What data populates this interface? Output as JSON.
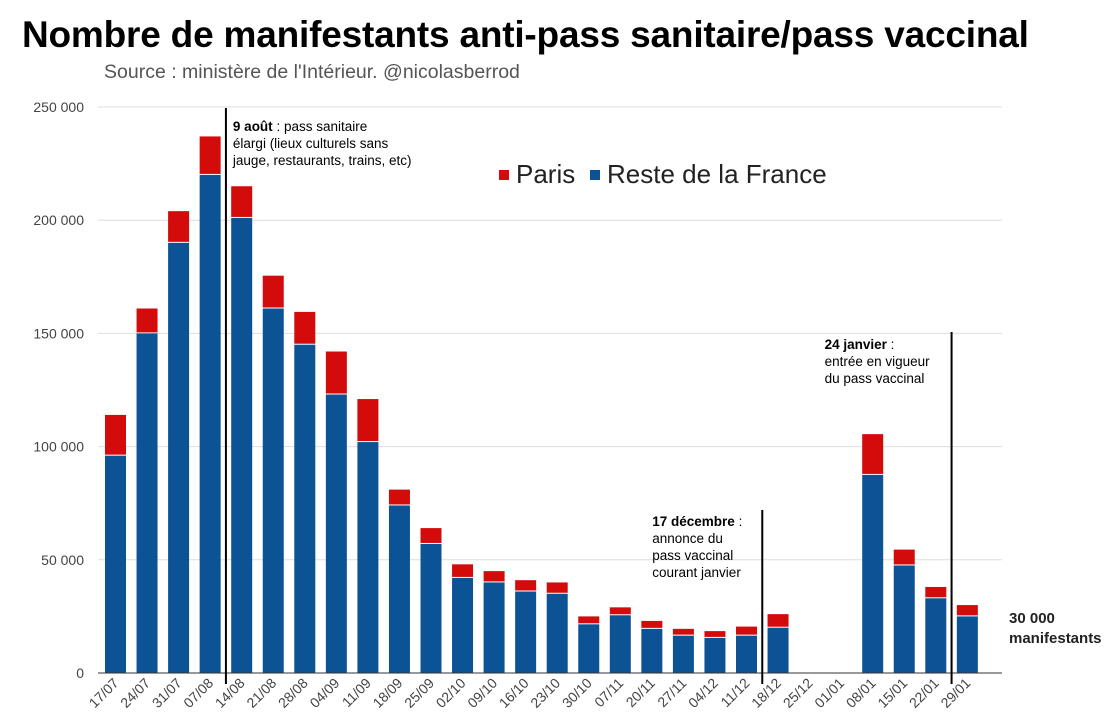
{
  "title": "Nombre de manifestants anti-pass sanitaire/pass vaccinal",
  "subtitle": "Source : ministère de l'Intérieur. @nicolasberrod",
  "colors": {
    "paris": "#d40b0b",
    "reste": "#0b5394",
    "grid": "#dddddd"
  },
  "chart_data": {
    "type": "bar",
    "stacked": true,
    "categories": [
      "17/07",
      "24/07",
      "31/07",
      "07/08",
      "14/08",
      "21/08",
      "28/08",
      "04/09",
      "11/09",
      "18/09",
      "25/09",
      "02/10",
      "09/10",
      "16/10",
      "23/10",
      "30/10",
      "07/11",
      "20/11",
      "27/11",
      "04/12",
      "11/12",
      "18/12",
      "25/12",
      "01/01",
      "08/01",
      "15/01",
      "22/01",
      "29/01"
    ],
    "series": [
      {
        "name": "Reste de la France",
        "values": [
          96000,
          150000,
          190000,
          220000,
          201000,
          161000,
          145000,
          123000,
          102000,
          74000,
          57000,
          42000,
          40000,
          36000,
          35000,
          21500,
          25500,
          19500,
          16500,
          15500,
          16500,
          20000,
          0,
          0,
          87500,
          47500,
          33000,
          25000
        ]
      },
      {
        "name": "Paris",
        "values": [
          18000,
          11000,
          14000,
          17000,
          14000,
          14500,
          14500,
          19000,
          19000,
          7000,
          7000,
          6000,
          5000,
          5000,
          5000,
          3500,
          3500,
          3500,
          3000,
          3000,
          4000,
          6000,
          0,
          0,
          18000,
          7000,
          5000,
          5000
        ]
      }
    ],
    "y_ticks": [
      "0",
      "50 000",
      "100 000",
      "150 000",
      "200 000",
      "250 000"
    ],
    "ylim": [
      0,
      250000
    ],
    "grid": true,
    "legend": {
      "position": "top-right",
      "items": [
        "Paris",
        "Reste de la France"
      ]
    },
    "annotations": [
      {
        "at_category": "07/08",
        "lines": [
          [
            {
              "text": "9 août",
              "bold": true
            },
            {
              "text": " : pass sanitaire",
              "bold": false
            }
          ],
          [
            {
              "text": "élargi (lieux culturels sans",
              "bold": false
            }
          ],
          [
            {
              "text": "jauge, restaurants, trains, etc)",
              "bold": false
            }
          ]
        ]
      },
      {
        "at_category": "11/12",
        "lines": [
          [
            {
              "text": "17 décembre",
              "bold": true
            },
            {
              "text": " :",
              "bold": false
            }
          ],
          [
            {
              "text": "annonce du",
              "bold": false
            }
          ],
          [
            {
              "text": "pass vaccinal",
              "bold": false
            }
          ],
          [
            {
              "text": "courant janvier",
              "bold": false
            }
          ]
        ]
      },
      {
        "at_category": "22/01",
        "lines": [
          [
            {
              "text": "24 janvier",
              "bold": true
            },
            {
              "text": " :",
              "bold": false
            }
          ],
          [
            {
              "text": "entrée en vigueur",
              "bold": false
            }
          ],
          [
            {
              "text": "du pass vaccinal",
              "bold": false
            }
          ]
        ]
      }
    ],
    "callout": [
      "30 000",
      "manifestants"
    ]
  }
}
